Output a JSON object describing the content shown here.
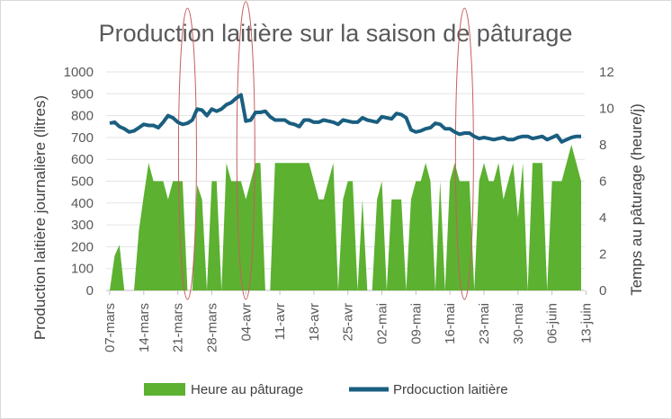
{
  "chart_data": {
    "type": "area",
    "title": "Production laitière sur la saison de pâturage",
    "ylabel": "Production laitière journalière (litres)",
    "y2label": "Temps au pâturage (heure/j)",
    "ylim": [
      0,
      1000
    ],
    "y2lim": [
      0,
      12
    ],
    "yticks": [
      "0",
      "100",
      "200",
      "300",
      "400",
      "500",
      "600",
      "700",
      "800",
      "900",
      "1000"
    ],
    "y2ticks": [
      "0",
      "2",
      "4",
      "6",
      "8",
      "10",
      "12"
    ],
    "xtick_labels": [
      "07-mars",
      "14-mars",
      "21-mars",
      "28-mars",
      "04-avr",
      "11-avr",
      "18-avr",
      "25-avr",
      "02-mai",
      "09-mai",
      "16-mai",
      "23-mai",
      "30-mai",
      "06-juin",
      "13-juin"
    ],
    "grid": true,
    "legend_position": "bottom",
    "series": [
      {
        "name": "Heure au pâturage",
        "type": "area",
        "axis": "right",
        "color": "#5cb130",
        "values": [
          0,
          1.9,
          2.5,
          0,
          0,
          0,
          3.3,
          5.2,
          7,
          6,
          6,
          6,
          5,
          6,
          6,
          6,
          0,
          0,
          5.8,
          5,
          0,
          6,
          6,
          0,
          7,
          6,
          6,
          6,
          5,
          6,
          7,
          7,
          0,
          0,
          7,
          7,
          7,
          7,
          7,
          7,
          7,
          7,
          6,
          5,
          5,
          6,
          7,
          0,
          5,
          6,
          6,
          0,
          5,
          0,
          0,
          5,
          6,
          0,
          5,
          5,
          5,
          0,
          5,
          6,
          6,
          7,
          6,
          0,
          6,
          0,
          6,
          7,
          6,
          6,
          6,
          0,
          6,
          7,
          6,
          6,
          7,
          5,
          6,
          7,
          4,
          7,
          0,
          7,
          7,
          7,
          0,
          6,
          6,
          6,
          7,
          8,
          7,
          6
        ]
      },
      {
        "name": "Prdocuction laitière",
        "type": "line",
        "axis": "left",
        "color": "#1a5e80",
        "values": [
          765,
          770,
          750,
          740,
          725,
          730,
          745,
          760,
          755,
          755,
          745,
          770,
          800,
          790,
          770,
          760,
          765,
          780,
          830,
          825,
          800,
          830,
          820,
          830,
          850,
          860,
          880,
          895,
          775,
          780,
          815,
          815,
          820,
          795,
          780,
          780,
          780,
          765,
          760,
          750,
          780,
          780,
          770,
          770,
          780,
          775,
          770,
          760,
          780,
          775,
          770,
          770,
          790,
          780,
          775,
          770,
          795,
          790,
          785,
          810,
          805,
          790,
          735,
          725,
          730,
          740,
          745,
          765,
          760,
          740,
          740,
          725,
          715,
          720,
          720,
          705,
          695,
          700,
          695,
          690,
          695,
          700,
          690,
          690,
          700,
          705,
          705,
          695,
          700,
          705,
          690,
          700,
          710,
          680,
          690,
          700,
          705,
          705
        ]
      }
    ]
  }
}
